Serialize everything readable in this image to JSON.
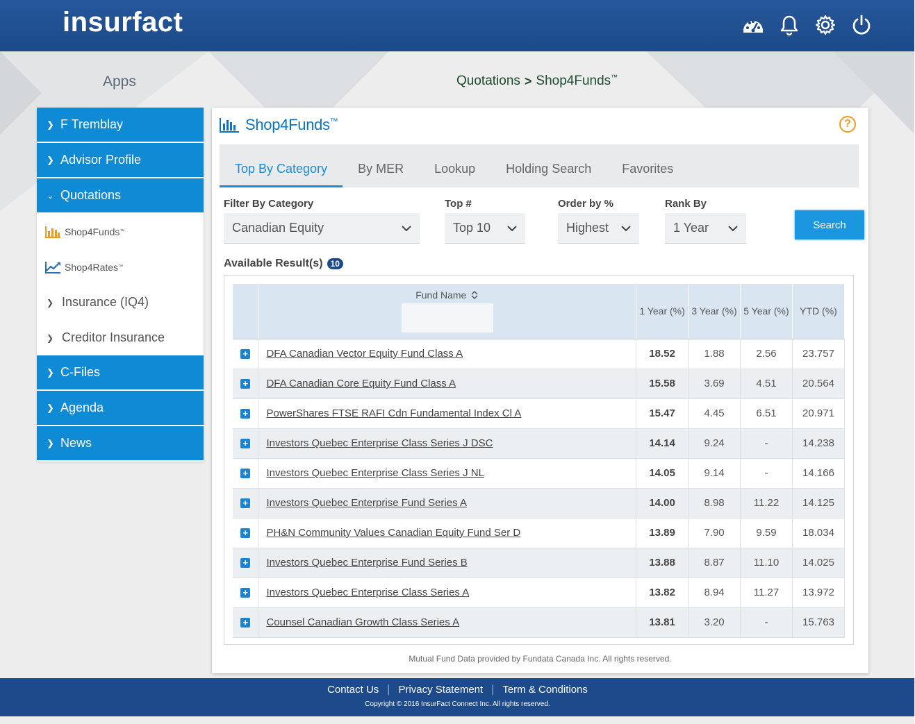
{
  "app": {
    "logo": "insurfact",
    "accent": "#1c4a8a",
    "sidebar_blue": "#0f8ad4",
    "icons": [
      "dashboard-icon",
      "bell-icon",
      "gear-icon",
      "power-icon"
    ]
  },
  "apps_title": "Apps",
  "breadcrumb": {
    "parent": "Quotations",
    "separator": ">",
    "current": "Shop4Funds",
    "current_tm": "™"
  },
  "sidebar": {
    "items": [
      {
        "label": "F Tremblay",
        "chev": ">"
      },
      {
        "label": "Advisor Profile",
        "chev": ">"
      },
      {
        "label": "Quotations",
        "chev": "v"
      },
      {
        "label": "Shop4Funds",
        "tm": "™",
        "icon": "bar-chart-icon"
      },
      {
        "label": "Shop4Rates",
        "tm": "™",
        "icon": "line-chart-icon"
      },
      {
        "label": "Insurance (IQ4)",
        "chev": ">"
      },
      {
        "label": "Creditor Insurance",
        "chev": ">"
      },
      {
        "label": "C-Files",
        "chev": ">"
      },
      {
        "label": "Agenda",
        "chev": ">"
      },
      {
        "label": "News",
        "chev": ">"
      }
    ]
  },
  "panel": {
    "title": "Shop4Funds",
    "title_tm": "™",
    "help": "?",
    "tabs": [
      "Top By Category",
      "By MER",
      "Lookup",
      "Holding Search",
      "Favorites"
    ],
    "active_tab": "Top By Category"
  },
  "filters": {
    "category": {
      "label": "Filter By Category",
      "value": "Canadian Equity"
    },
    "top": {
      "label": "Top #",
      "value": "Top 10"
    },
    "order": {
      "label": "Order by %",
      "value": "Highest"
    },
    "rank": {
      "label": "Rank By",
      "value": "1 Year"
    },
    "search_button": "Search"
  },
  "results": {
    "label": "Available Result(s)",
    "count": "10",
    "columns": {
      "fund": "Fund Name",
      "y1": "1 Year (%)",
      "y3": "3 Year (%)",
      "y5": "5 Year (%)",
      "ytd": "YTD (%)"
    },
    "rows": [
      {
        "name": "DFA Canadian Vector Equity Fund Class A",
        "y1": "18.52",
        "y3": "1.88",
        "y5": "2.56",
        "ytd": "23.757"
      },
      {
        "name": "DFA Canadian Core Equity Fund Class A",
        "y1": "15.58",
        "y3": "3.69",
        "y5": "4.51",
        "ytd": "20.564"
      },
      {
        "name": "PowerShares FTSE RAFI Cdn Fundamental Index Cl A",
        "y1": "15.47",
        "y3": "4.45",
        "y5": "6.51",
        "ytd": "20.971"
      },
      {
        "name": "Investors Quebec Enterprise Class Series J DSC",
        "y1": "14.14",
        "y3": "9.24",
        "y5": "-",
        "ytd": "14.238"
      },
      {
        "name": "Investors Quebec Enterprise Class Series J NL",
        "y1": "14.05",
        "y3": "9.14",
        "y5": "-",
        "ytd": "14.166"
      },
      {
        "name": "Investors Quebec Enterprise Fund Series A",
        "y1": "14.00",
        "y3": "8.98",
        "y5": "11.22",
        "ytd": "14.125"
      },
      {
        "name": "PH&N Community Values Canadian Equity Fund Ser D",
        "y1": "13.89",
        "y3": "7.90",
        "y5": "9.59",
        "ytd": "18.034"
      },
      {
        "name": "Investors Quebec Enterprise Fund Series B",
        "y1": "13.88",
        "y3": "8.87",
        "y5": "11.10",
        "ytd": "14.025"
      },
      {
        "name": "Investors Quebec Enterprise Class Series A",
        "y1": "13.82",
        "y3": "8.94",
        "y5": "11.27",
        "ytd": "13.972"
      },
      {
        "name": "Counsel Canadian Growth Class Series A",
        "y1": "13.81",
        "y3": "3.20",
        "y5": "-",
        "ytd": "15.763"
      }
    ],
    "data_credit": "Mutual Fund Data provided by Fundata Canada Inc. All rights reserved."
  },
  "footer": {
    "links": [
      "Contact Us",
      "Privacy Statement",
      "Term & Conditions"
    ],
    "separator": "|",
    "copyright": "Copyright © 2016 InsurFact Connect Inc. All rights reserved."
  }
}
